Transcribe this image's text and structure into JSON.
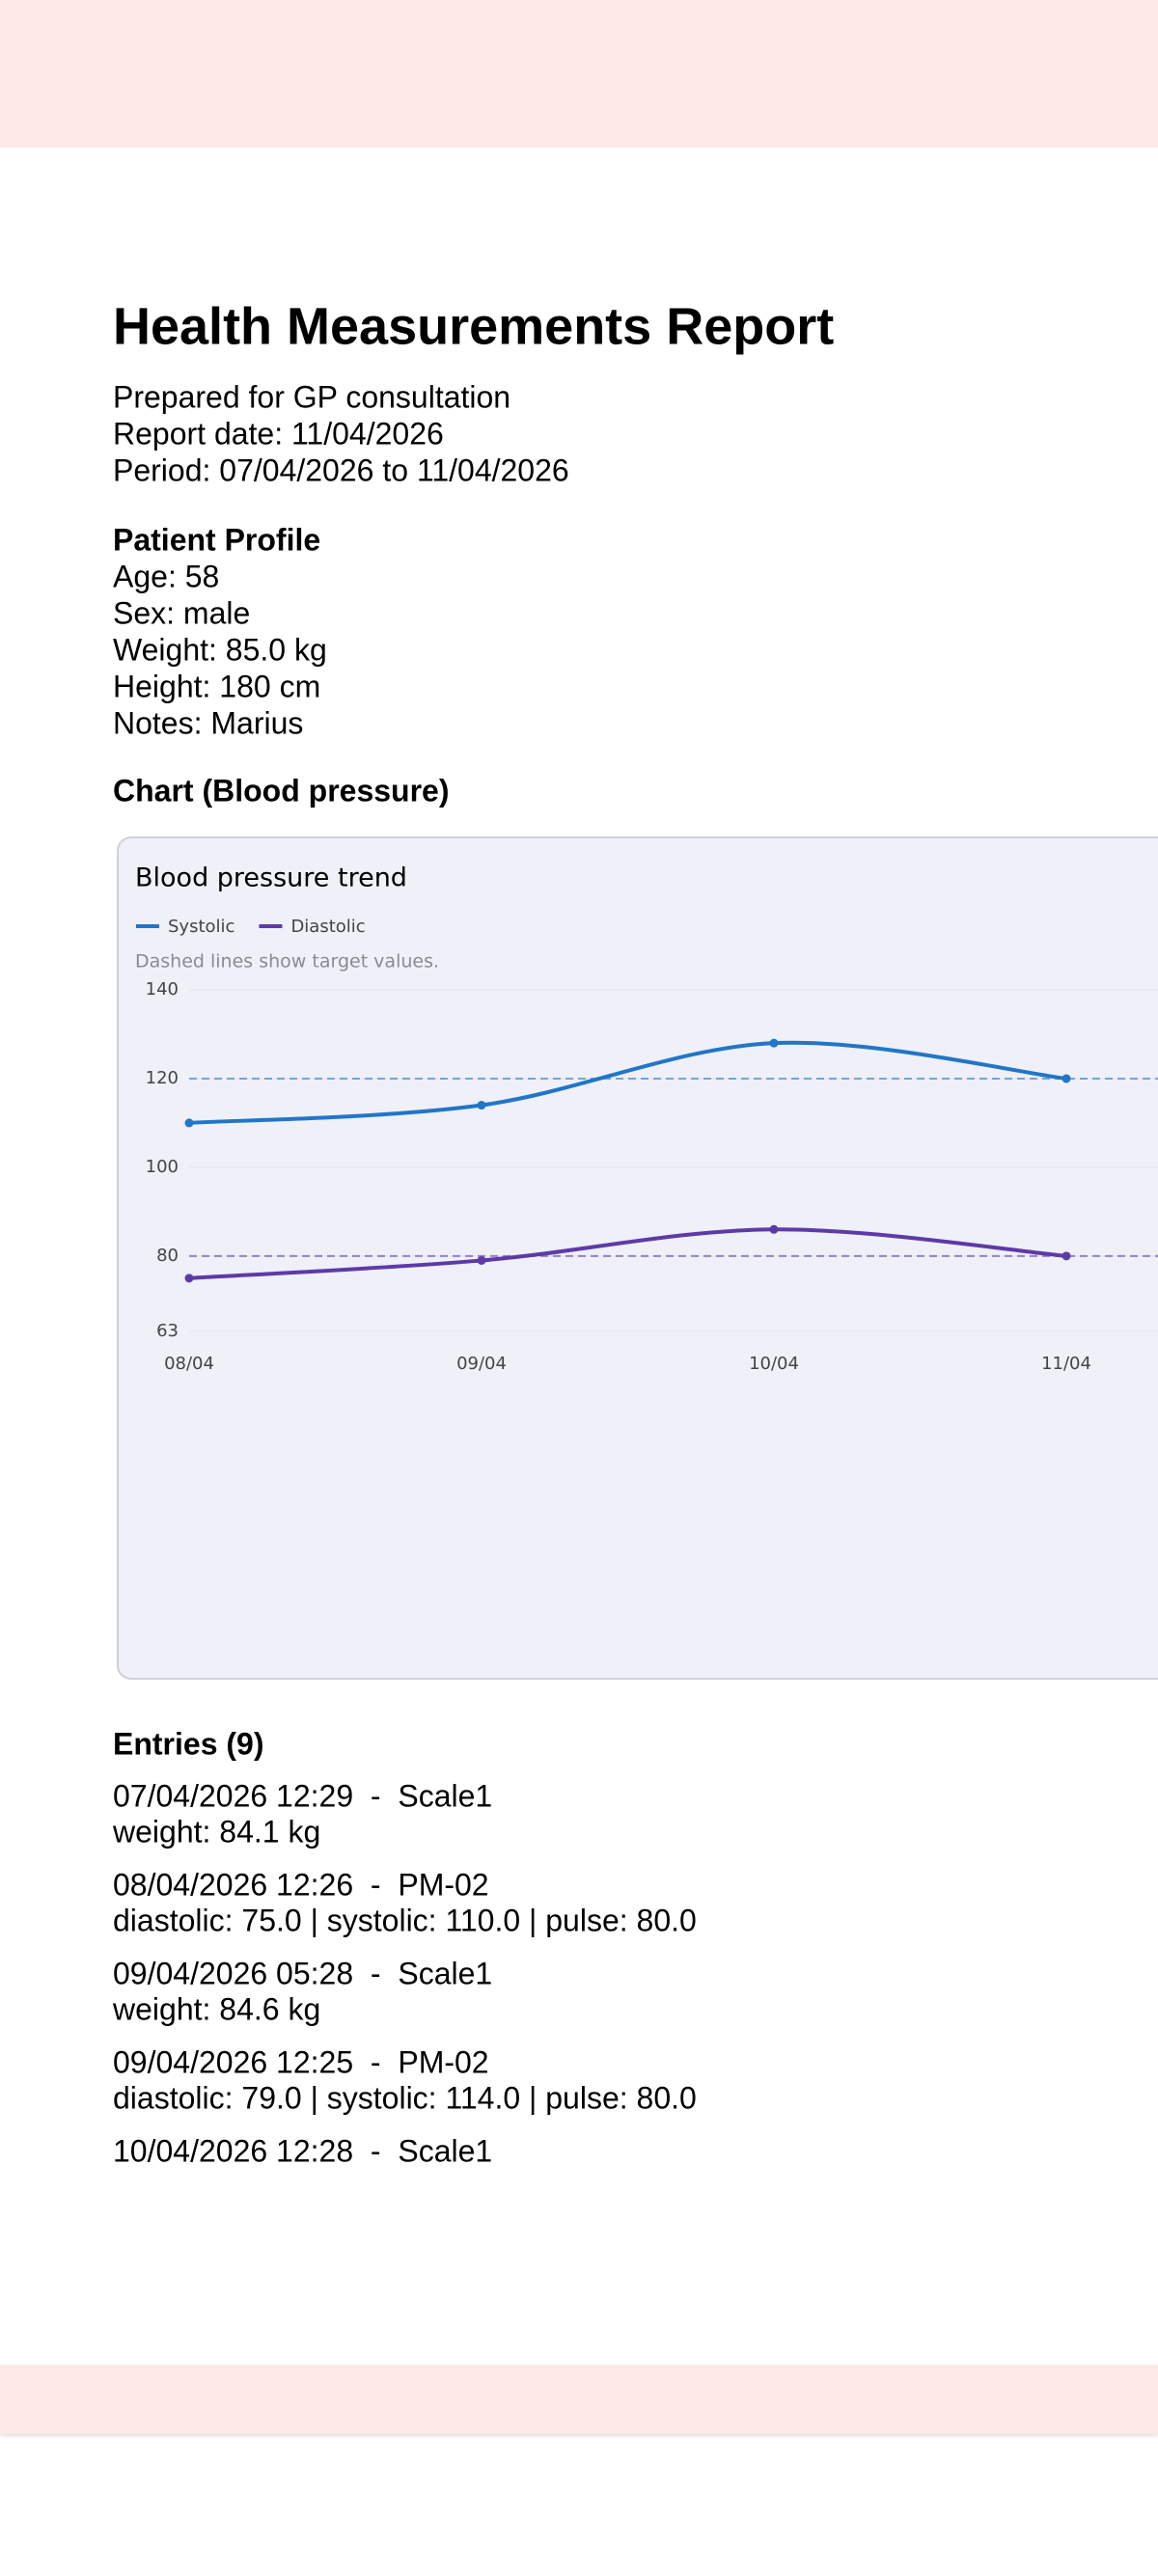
{
  "report": {
    "title": "Health Measurements Report",
    "lines": [
      "Prepared for GP consultation",
      "Report date: 11/04/2026",
      "Period: 07/04/2026 to 11/04/2026"
    ]
  },
  "profile": {
    "heading": "Patient Profile",
    "lines": [
      "Age: 58",
      "Sex: male",
      "Weight: 85.0 kg",
      "Height: 180 cm",
      "Notes: Marius"
    ]
  },
  "chart_heading": "Chart (Blood pressure)",
  "chart_data": {
    "type": "line",
    "title": "Blood pressure trend",
    "note": "Dashed lines show target values.",
    "categories": [
      "08/04",
      "09/04",
      "10/04",
      "11/04"
    ],
    "series": [
      {
        "name": "Systolic",
        "color": "#2176c7",
        "values": [
          110,
          114,
          128,
          120
        ],
        "target": 120
      },
      {
        "name": "Diastolic",
        "color": "#5e3aa8",
        "values": [
          75,
          79,
          86,
          80
        ],
        "target": 80
      }
    ],
    "ylim": [
      63,
      140
    ],
    "yticks": [
      63,
      80,
      100,
      120,
      140
    ],
    "grid": true
  },
  "entries": {
    "heading": "Entries (9)",
    "items": [
      {
        "header": "07/04/2026 12:29  -  Scale1",
        "detail": "weight: 84.1 kg"
      },
      {
        "header": "08/04/2026 12:26  -  PM-02",
        "detail": "diastolic: 75.0 | systolic: 110.0 | pulse: 80.0"
      },
      {
        "header": "09/04/2026 05:28  -  Scale1",
        "detail": "weight: 84.6 kg"
      },
      {
        "header": "09/04/2026 12:25  -  PM-02",
        "detail": "diastolic: 79.0 | systolic: 114.0 | pulse: 80.0"
      },
      {
        "header": "10/04/2026 12:28  -  Scale1"
      }
    ]
  }
}
